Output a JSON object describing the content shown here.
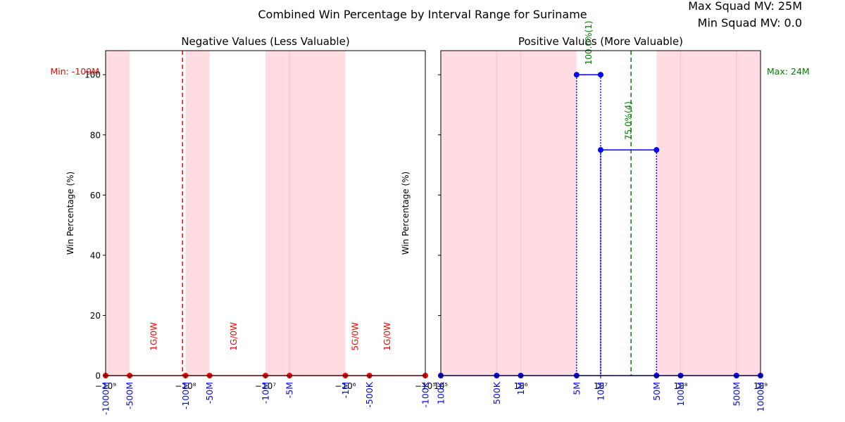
{
  "suptitle": "Combined Win Percentage by Interval Range for Suriname",
  "info": {
    "max_squad_mv": "Max Squad MV: 25M",
    "min_squad_mv": "Min Squad MV: 0.0"
  },
  "chart_data": [
    {
      "type": "line",
      "title": "Negative Values (Less Valuable)",
      "ylabel": "Win Percentage (%)",
      "xlabel": "",
      "x_scale": "symlog",
      "xlim": [
        -1000000000,
        -100000
      ],
      "ylim": [
        0,
        108
      ],
      "y_ticks": [
        0,
        20,
        40,
        60,
        80,
        100
      ],
      "grid": false,
      "colors": {
        "line": "#ff0000",
        "label": "#ff0000",
        "tick_label": "#0000ff",
        "shade": "#ffc0cb"
      },
      "x_tick_labels": [
        {
          "value": -1000000000,
          "main": "−10⁹",
          "sub": "-1000M"
        },
        {
          "value": -500000000,
          "sub": "-500M"
        },
        {
          "value": -100000000,
          "main": "−10⁸",
          "sub": "-100M"
        },
        {
          "value": -50000000,
          "sub": "-50M"
        },
        {
          "value": -10000000,
          "main": "−10⁷",
          "sub": "-10M"
        },
        {
          "value": -5000000,
          "sub": "-5M"
        },
        {
          "value": -1000000,
          "main": "−10⁶",
          "sub": "-1M"
        },
        {
          "value": -500000,
          "sub": "-500K"
        },
        {
          "value": -100000,
          "main": "−10⁵",
          "sub": "-100K"
        }
      ],
      "shaded_ranges": [
        [
          -1000000000,
          -500000000
        ],
        [
          -100000000,
          -50000000
        ],
        [
          -10000000,
          -1000000
        ]
      ],
      "points": [
        {
          "x": -1000000000,
          "y": 0
        },
        {
          "x": -500000000,
          "y": 0
        },
        {
          "x": -100000000,
          "y": 0
        },
        {
          "x": -50000000,
          "y": 0
        },
        {
          "x": -10000000,
          "y": 0
        },
        {
          "x": -5000000,
          "y": 0
        },
        {
          "x": -1000000,
          "y": 0
        },
        {
          "x": -500000,
          "y": 0
        },
        {
          "x": -100000,
          "y": 0
        }
      ],
      "annotations": [
        {
          "x": -250000000,
          "y": 5,
          "text": "1G/0W"
        },
        {
          "x": -25000000,
          "y": 5,
          "text": "1G/0W"
        },
        {
          "x": -750000,
          "y": 5,
          "text": "5G/0W"
        },
        {
          "x": -300000,
          "y": 5,
          "text": "1G/0W"
        }
      ],
      "reference_line": {
        "x": -109000000,
        "label": "Min: -109M",
        "color": "#ff0000"
      }
    },
    {
      "type": "line",
      "title": "Positive Values (More Valuable)",
      "ylabel": "Win Percentage (%)",
      "xlabel": "",
      "x_scale": "log",
      "xlim": [
        100000,
        1000000000
      ],
      "ylim": [
        0,
        108
      ],
      "grid": false,
      "colors": {
        "line": "#0000ff",
        "label": "#008000",
        "tick_label": "#0000ff",
        "shade": "#ffc0cb"
      },
      "x_tick_labels": [
        {
          "value": 100000,
          "main": "10⁵",
          "sub": "100K"
        },
        {
          "value": 500000,
          "sub": "500K"
        },
        {
          "value": 1000000,
          "main": "10⁶",
          "sub": "1M"
        },
        {
          "value": 5000000,
          "sub": "5M"
        },
        {
          "value": 10000000,
          "main": "10⁷",
          "sub": "10M"
        },
        {
          "value": 50000000,
          "sub": "50M"
        },
        {
          "value": 100000000,
          "main": "10⁸",
          "sub": "100M"
        },
        {
          "value": 500000000,
          "sub": "500M"
        },
        {
          "value": 1000000000,
          "main": "10⁹",
          "sub": "1000M"
        }
      ],
      "shaded_ranges": [
        [
          100000,
          5000000
        ],
        [
          50000000,
          1000000000
        ]
      ],
      "baseline_points": [
        {
          "x": 100000,
          "y": 0
        },
        {
          "x": 500000,
          "y": 0
        },
        {
          "x": 1000000,
          "y": 0
        },
        {
          "x": 5000000,
          "y": 0
        },
        {
          "x": 50000000,
          "y": 0
        },
        {
          "x": 100000000,
          "y": 0
        },
        {
          "x": 500000000,
          "y": 0
        },
        {
          "x": 1000000000,
          "y": 0
        }
      ],
      "steps": [
        {
          "x_start": 5000000,
          "x_end": 10000000,
          "y": 100,
          "label": "100.0%(1)"
        },
        {
          "x_start": 10000000,
          "x_end": 50000000,
          "y": 75,
          "label": "75.0%(4)"
        }
      ],
      "reference_line": {
        "x": 24000000,
        "label": "Max: 24M",
        "color": "#008000"
      }
    }
  ]
}
